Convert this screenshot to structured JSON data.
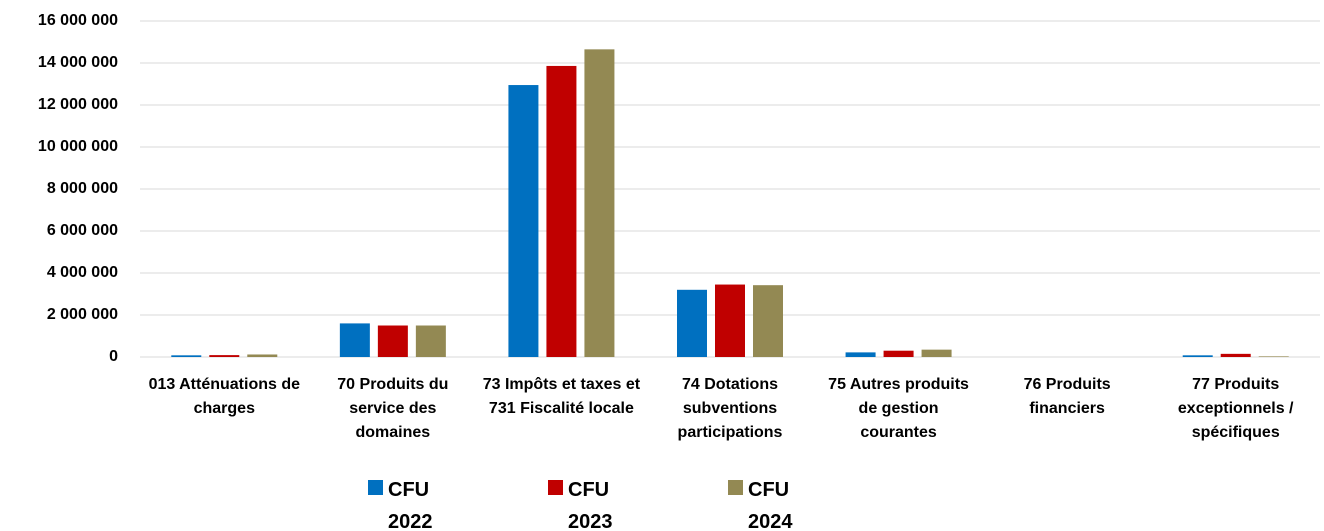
{
  "chart_data": {
    "type": "bar",
    "categories": [
      "013 Atténuations de charges",
      "70 Produits du service des domaines",
      "73 Impôts et taxes et 731 Fiscalité locale",
      "74 Dotations subventions participations",
      "75 Autres produits de gestion courantes",
      "76 Produits financiers",
      "77 Produits exceptionnels / spécifiques"
    ],
    "series": [
      {
        "name": "CFU 2022",
        "color": "#0070c0",
        "values": [
          80000,
          1600000,
          12950000,
          3200000,
          220000,
          0,
          80000
        ]
      },
      {
        "name": "CFU 2023",
        "color": "#c00000",
        "values": [
          90000,
          1500000,
          13860000,
          3450000,
          300000,
          0,
          150000
        ]
      },
      {
        "name": "CFU 2024",
        "color": "#938953",
        "values": [
          120000,
          1500000,
          14650000,
          3420000,
          350000,
          0,
          30000
        ]
      }
    ],
    "ylim": [
      0,
      16000000
    ],
    "yticks": [
      {
        "value": 0,
        "label": "0"
      },
      {
        "value": 2000000,
        "label": "2 000 000"
      },
      {
        "value": 4000000,
        "label": "4 000 000"
      },
      {
        "value": 6000000,
        "label": "6 000 000"
      },
      {
        "value": 8000000,
        "label": "8 000 000"
      },
      {
        "value": 10000000,
        "label": "10 000 000"
      },
      {
        "value": 12000000,
        "label": "12 000 000"
      },
      {
        "value": 14000000,
        "label": "14 000 000"
      },
      {
        "value": 16000000,
        "label": "16 000 000"
      }
    ],
    "grid": true,
    "legend": "bottom"
  }
}
